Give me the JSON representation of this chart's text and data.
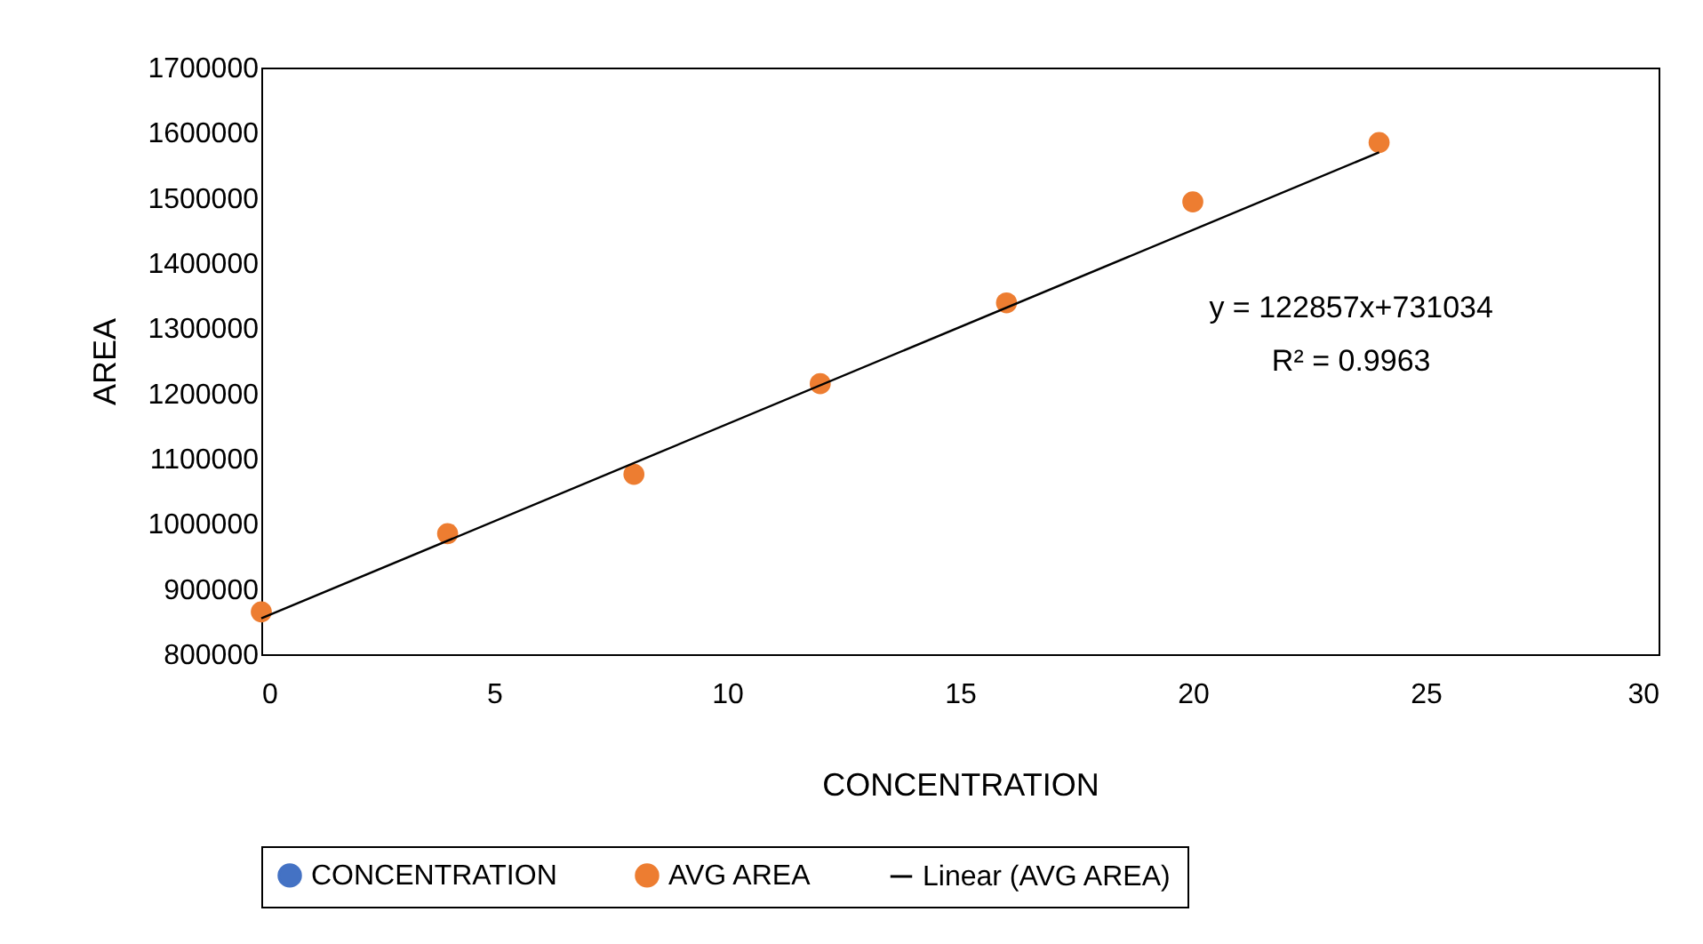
{
  "chart_data": {
    "type": "scatter",
    "xlabel": "CONCENTRATION",
    "ylabel": "AREA",
    "x": [
      0,
      4,
      8,
      12,
      16,
      20,
      24
    ],
    "series": [
      {
        "name": "CONCENTRATION",
        "color": "#4472c4",
        "marker": "circle",
        "values": [
          null,
          null,
          null,
          null,
          null,
          null,
          null
        ]
      },
      {
        "name": "AVG AREA",
        "color": "#ed7d31",
        "marker": "circle",
        "values": [
          865000,
          985000,
          1076000,
          1215000,
          1339000,
          1494000,
          1585000
        ]
      },
      {
        "name": "Linear (AVG AREA)",
        "type": "line",
        "color": "#000000",
        "x": [
          0,
          24
        ],
        "values": [
          855000,
          1570000
        ]
      }
    ],
    "annotations": [
      "y = 122857x+731034",
      "R² = 0.9963"
    ],
    "xlim": [
      0,
      30
    ],
    "xticks": [
      0,
      5,
      10,
      15,
      20,
      25,
      30
    ],
    "ylim": [
      800000,
      1700000
    ],
    "yticks": [
      800000,
      900000,
      1000000,
      1100000,
      1200000,
      1300000,
      1400000,
      1500000,
      1600000,
      1700000
    ],
    "grid": false,
    "legend": "bottom"
  }
}
